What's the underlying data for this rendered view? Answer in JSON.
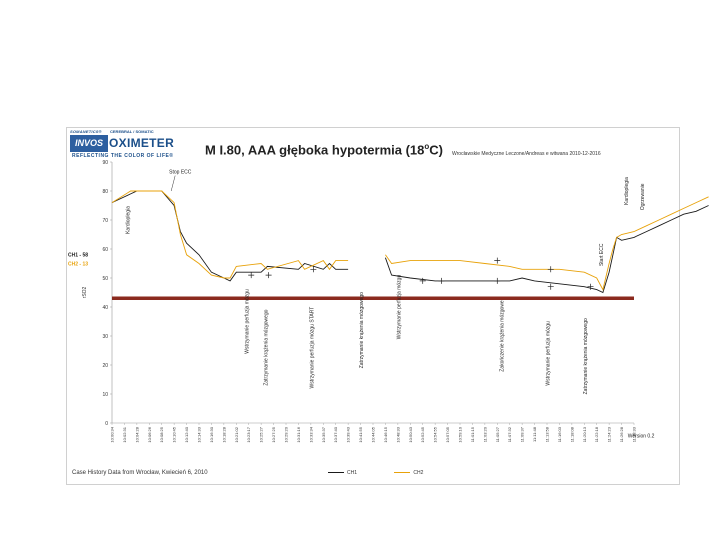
{
  "header": {
    "brand_small": "SOMANETICS®",
    "brand_top": "CEREBRAL / SOMATIC",
    "brand_box": "INVOS",
    "brand_word": "OXIMETER",
    "brand_tagline": "REFLECTING THE COLOR OF LIFE®"
  },
  "colors": {
    "ch1": "#1a1a1a",
    "ch2": "#e8a20a",
    "threshold": "#8b2a1e",
    "side_ch1": "#1a1a1a",
    "side_ch2": "#e8a20a"
  },
  "chart_data": {
    "type": "line",
    "title": "M I.80, AAA  głęboka hypotermia (18",
    "title_deg": "o",
    "title_unit": "C)",
    "subtitle": "Wrocławskie Medyczne Leczone/Andreas e witwana 2010-12-2016",
    "ylabel": "rSO2",
    "ylim": [
      0,
      90
    ],
    "yticks": [
      0,
      10,
      20,
      30,
      40,
      50,
      60,
      70,
      80,
      90
    ],
    "threshold": 43,
    "side_labels": [
      {
        "text": "CH1 - 58",
        "color_key": "side_ch1"
      },
      {
        "text": "CH2 - 13",
        "color_key": "side_ch2"
      }
    ],
    "x_ticks": [
      "10:00:34",
      "10:02:31",
      "10:04:28",
      "10:06:26",
      "10:08:25",
      "10:10:45",
      "10:12:40",
      "10:14:33",
      "10:16:30",
      "10:18:28",
      "10:21:02",
      "10:23:17",
      "10:25:27",
      "10:27:25",
      "10:29:20",
      "10:31:16",
      "10:33:34",
      "10:35:37",
      "10:37:40",
      "10:39:43",
      "10:41:55",
      "10:44:05",
      "10:46:15",
      "10:48:33",
      "10:50:43",
      "10:52:45",
      "10:54:55",
      "10:57:05",
      "10:59:10",
      "11:01:15",
      "11:03:20",
      "11:05:27",
      "11:07:32",
      "11:09:37",
      "11:11:48",
      "11:13:58",
      "11:16:03",
      "11:18:08",
      "11:20:13",
      "11:22:18",
      "11:24:23",
      "11:26:28",
      "11:28:33"
    ],
    "series": [
      {
        "name": "CH1",
        "points": [
          [
            0,
            76
          ],
          [
            1.5,
            79
          ],
          [
            2,
            80
          ],
          [
            4,
            80
          ],
          [
            5,
            75
          ],
          [
            5.5,
            66
          ],
          [
            6,
            62
          ],
          [
            7,
            58
          ],
          [
            8,
            52
          ],
          [
            9,
            50
          ],
          [
            9.5,
            49
          ],
          [
            10,
            52
          ],
          [
            12,
            52
          ],
          [
            12.5,
            54
          ],
          [
            15,
            53
          ],
          [
            15.5,
            55
          ],
          [
            17,
            53
          ],
          [
            17.5,
            55
          ],
          [
            18,
            53
          ],
          [
            19,
            53
          ]
        ]
      },
      {
        "name": "CH2",
        "points": [
          [
            0,
            76
          ],
          [
            1.5,
            80
          ],
          [
            2,
            80
          ],
          [
            4,
            80
          ],
          [
            5,
            76
          ],
          [
            5.5,
            65
          ],
          [
            6,
            58
          ],
          [
            7,
            55
          ],
          [
            8,
            51
          ],
          [
            9,
            50
          ],
          [
            9.5,
            50
          ],
          [
            10,
            54
          ],
          [
            12,
            55
          ],
          [
            12.5,
            53
          ],
          [
            15,
            56
          ],
          [
            15.5,
            53
          ],
          [
            17,
            56
          ],
          [
            17.5,
            53
          ],
          [
            18,
            56
          ],
          [
            19,
            56
          ]
        ]
      },
      {
        "name": "CH1",
        "points": [
          [
            22,
            57
          ],
          [
            22.5,
            51
          ],
          [
            24,
            50
          ],
          [
            26,
            49
          ],
          [
            28,
            49
          ],
          [
            30,
            49
          ],
          [
            32,
            49
          ],
          [
            33,
            50
          ],
          [
            34,
            49
          ],
          [
            36,
            48
          ],
          [
            38,
            47
          ],
          [
            39,
            46
          ],
          [
            39.5,
            45
          ],
          [
            40,
            52
          ],
          [
            40.3,
            58
          ],
          [
            40.6,
            64
          ],
          [
            41,
            63
          ],
          [
            42,
            64
          ],
          [
            43,
            66
          ],
          [
            44,
            68
          ],
          [
            45,
            70
          ],
          [
            46,
            72
          ],
          [
            47,
            73
          ],
          [
            48,
            75
          ]
        ]
      },
      {
        "name": "CH2",
        "points": [
          [
            22,
            58
          ],
          [
            22.5,
            55
          ],
          [
            24,
            56
          ],
          [
            26,
            56
          ],
          [
            28,
            56
          ],
          [
            30,
            55
          ],
          [
            32,
            54
          ],
          [
            33,
            53
          ],
          [
            34,
            53
          ],
          [
            36,
            53
          ],
          [
            38,
            52
          ],
          [
            39,
            50
          ],
          [
            39.5,
            46
          ],
          [
            40,
            55
          ],
          [
            40.3,
            60
          ],
          [
            40.6,
            64
          ],
          [
            41,
            65
          ],
          [
            42,
            66
          ],
          [
            43,
            68
          ],
          [
            44,
            70
          ],
          [
            45,
            72
          ],
          [
            46,
            74
          ],
          [
            47,
            76
          ],
          [
            48,
            78
          ]
        ]
      }
    ],
    "annotations": [
      {
        "text": "Stop ECC",
        "x": 4.6,
        "y": 86
      },
      {
        "text": "Kardioplegia",
        "x": 1.4,
        "y": 70,
        "rot": true
      },
      {
        "text": "Wstrzymanie perfuzja mózgu",
        "x": 11.0,
        "y": 35,
        "rot": true
      },
      {
        "text": "Zatrzymanie krążenia mózgowego",
        "x": 12.5,
        "y": 26,
        "rot": true
      },
      {
        "text": "Wstrzymanie perfuzja mózgu START",
        "x": 16.2,
        "y": 26,
        "rot": true
      },
      {
        "text": "Zatrzymanie krążenia mózgowego",
        "x": 20.2,
        "y": 32,
        "rot": true
      },
      {
        "text": "Wstrzymanie perfuzja mózgu",
        "x": 23.2,
        "y": 40,
        "rot": true
      },
      {
        "text": "Zakończenie krążenia mózgowe",
        "x": 31.5,
        "y": 30,
        "rot": true
      },
      {
        "text": "Wstrzymanie perfuzja mózgu",
        "x": 35.2,
        "y": 24,
        "rot": true
      },
      {
        "text": "Zatrzymanie krążenia mózgowego",
        "x": 38.2,
        "y": 23,
        "rot": true
      },
      {
        "text": "Start ECC",
        "x": 39.5,
        "y": 58,
        "rot": true
      },
      {
        "text": "Kardioplegia",
        "x": 41.5,
        "y": 80,
        "rot": true
      },
      {
        "text": "Ogrzewanie",
        "x": 42.8,
        "y": 78,
        "rot": true
      },
      {
        "text": "Wersion 0.2",
        "x": 41.5,
        "y": -5
      }
    ],
    "markers": [
      [
        11.2,
        51
      ],
      [
        12.6,
        51
      ],
      [
        16.2,
        53
      ],
      [
        25,
        49
      ],
      [
        26.5,
        49
      ],
      [
        31,
        56
      ],
      [
        31,
        49
      ],
      [
        35.3,
        47
      ],
      [
        35.3,
        53
      ],
      [
        38.5,
        47
      ]
    ],
    "footnote": "Case History Data from Wrocław, Kwiecień 6, 2010",
    "legend": [
      "CH1",
      "CH2"
    ]
  }
}
